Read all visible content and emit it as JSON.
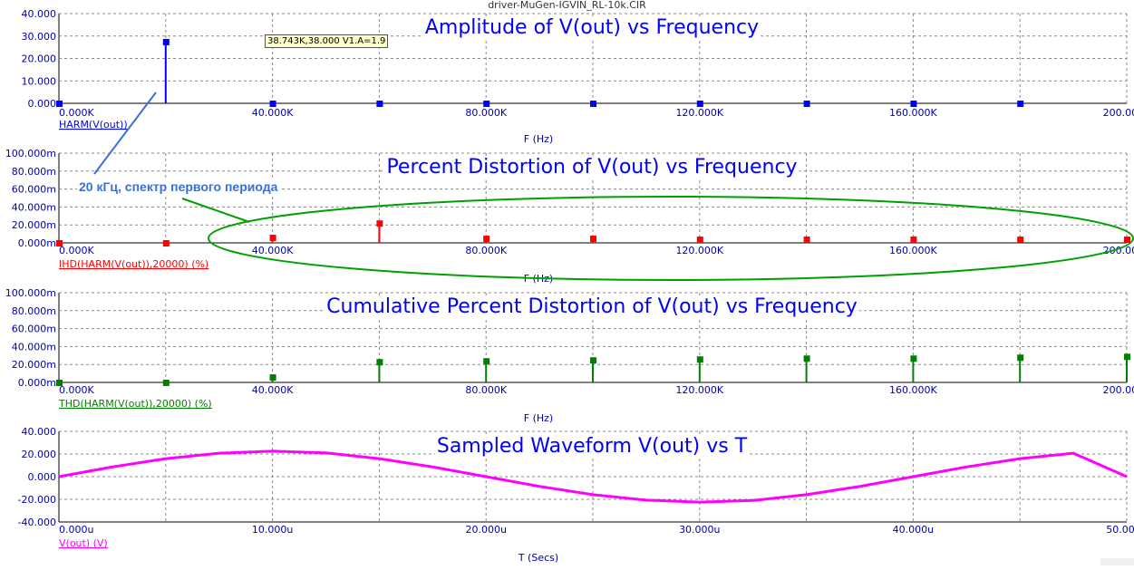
{
  "window": {
    "file_title": "driver-MuGen-IGVIN_RL-10k.CIR"
  },
  "tooltip": "38.743K,38.000 V1.A=1.9",
  "annotation": "20 кГц, спектр первого периода",
  "chart_data": [
    {
      "type": "bar",
      "title": "Amplitude of V(out) vs Frequency",
      "series_label": "HARM(V(out))",
      "xlabel": "F (Hz)",
      "color": "#0000ff",
      "xlim": [
        0,
        200000
      ],
      "ylim": [
        0,
        40
      ],
      "y_ticks": [
        "0.000",
        "10.000",
        "20.000",
        "30.000",
        "40.000"
      ],
      "x_ticks": [
        "0.000K",
        "40.000K",
        "80.000K",
        "120.000K",
        "160.000K",
        "200.000K"
      ],
      "x": [
        0,
        20000,
        40000,
        60000,
        80000,
        100000,
        120000,
        140000,
        160000,
        180000
      ],
      "values": [
        0,
        27.5,
        0,
        0,
        0,
        0,
        0,
        0,
        0,
        0
      ]
    },
    {
      "type": "bar",
      "title": "Percent Distortion of V(out) vs Frequency",
      "series_label": "IHD(HARM(V(out)),20000) (%)",
      "xlabel": "F (Hz)",
      "color": "#ff0000",
      "xlim": [
        0,
        200000
      ],
      "ylim": [
        0,
        100
      ],
      "y_ticks": [
        "0.000m",
        "20.000m",
        "40.000m",
        "60.000m",
        "80.000m",
        "100.000m"
      ],
      "x_ticks": [
        "0.000K",
        "40.000K",
        "80.000K",
        "120.000K",
        "160.000K",
        "200.000K"
      ],
      "x": [
        0,
        20000,
        40000,
        60000,
        80000,
        100000,
        120000,
        140000,
        160000,
        180000,
        200000
      ],
      "values": [
        0,
        0,
        6,
        22,
        5,
        5,
        4,
        4,
        4,
        4,
        4
      ]
    },
    {
      "type": "bar",
      "title": "Cumulative Percent Distortion of V(out) vs Frequency",
      "series_label": "THD(HARM(V(out)),20000) (%)",
      "xlabel": "F (Hz)",
      "color": "#007f00",
      "xlim": [
        0,
        200000
      ],
      "ylim": [
        0,
        100
      ],
      "y_ticks": [
        "0.000m",
        "20.000m",
        "40.000m",
        "60.000m",
        "80.000m",
        "100.000m"
      ],
      "x_ticks": [
        "0.000K",
        "40.000K",
        "80.000K",
        "120.000K",
        "160.000K",
        "200.000K"
      ],
      "x": [
        0,
        20000,
        40000,
        60000,
        80000,
        100000,
        120000,
        140000,
        160000,
        180000,
        200000
      ],
      "values": [
        0,
        0,
        6,
        23,
        24,
        25,
        26,
        27,
        27,
        28,
        29
      ]
    },
    {
      "type": "line",
      "title": "Sampled Waveform  V(out) vs T",
      "series_label": "V(out) (V)",
      "xlabel": "T (Secs)",
      "color": "#ff00ff",
      "xlim": [
        0,
        50
      ],
      "ylim": [
        -40,
        40
      ],
      "y_ticks": [
        "-40.000",
        "-20.000",
        "0.000",
        "20.000",
        "40.000"
      ],
      "x_ticks": [
        "0.000u",
        "10.000u",
        "20.000u",
        "30.000u",
        "40.000u",
        "50.000u"
      ],
      "x": [
        0,
        2.5,
        5,
        7.5,
        10,
        12.5,
        15,
        17.5,
        20,
        22.5,
        25,
        27.5,
        30,
        32.5,
        35,
        37.5,
        40,
        42.5,
        45,
        47.5,
        50
      ],
      "values": [
        0,
        8.6,
        15.9,
        20.7,
        22.5,
        21.0,
        15.9,
        8.6,
        0,
        -8.6,
        -15.9,
        -20.7,
        -22.5,
        -21.0,
        -15.9,
        -8.6,
        0,
        8.6,
        15.9,
        20.7,
        0
      ]
    }
  ]
}
